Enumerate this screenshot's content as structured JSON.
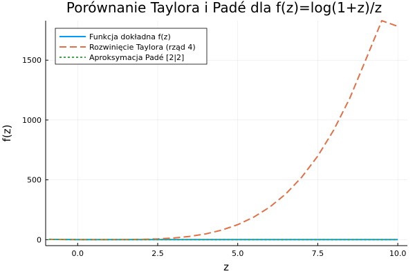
{
  "chart_data": {
    "type": "line",
    "title": "Porównanie Taylora i Padé dla f(z)=log(1+z)/z",
    "xlabel": "z",
    "ylabel": "f(z)",
    "xlim": [
      -1,
      10.3
    ],
    "ylim": [
      -50,
      1830
    ],
    "grid": true,
    "legend_position": "top-left",
    "x_ticks": [
      0.0,
      2.5,
      5.0,
      7.5,
      10.0
    ],
    "x_tick_labels": [
      "0.0",
      "2.5",
      "5.0",
      "7.5",
      "10.0"
    ],
    "y_ticks": [
      0,
      500,
      1000,
      1500
    ],
    "y_tick_labels": [
      "0",
      "500",
      "1000",
      "1500"
    ],
    "x": [
      -0.9,
      0.0,
      0.5,
      1.0,
      1.5,
      2.0,
      2.5,
      3.0,
      3.5,
      4.0,
      4.5,
      5.0,
      5.5,
      6.0,
      6.5,
      7.0,
      7.5,
      8.0,
      8.5,
      9.0,
      9.5,
      10.0
    ],
    "series": [
      {
        "name": "Funkcja dokładna f(z)",
        "color": "#009AFA",
        "dash": "solid",
        "values": [
          2.558,
          1.0,
          0.811,
          0.693,
          0.611,
          0.549,
          0.501,
          0.462,
          0.429,
          0.402,
          0.378,
          0.358,
          0.34,
          0.324,
          0.31,
          0.297,
          0.285,
          0.275,
          0.265,
          0.256,
          0.248,
          0.24
        ]
      },
      {
        "name": "Rozwinięcie Taylora (rząd 4)",
        "color": "#E26F46",
        "dash": "dashed",
        "values": [
          2.032,
          1.0,
          0.802,
          0.783,
          1.198,
          2.733,
          6.485,
          13.95,
          27.05,
          48.07,
          79.73,
          125.2,
          188.1,
          272.2,
          382.1,
          522.4,
          698.3,
          916.0,
          1181.9,
          1503.5,
          1888.0,
          1783.3
        ]
      },
      {
        "name": "Aproksymacja Padé [2|2]",
        "color": "#3EA44E",
        "dash": "dotted",
        "values": [
          2.53,
          1.0,
          0.811,
          0.693,
          0.611,
          0.549,
          0.501,
          0.462,
          0.429,
          0.402,
          0.378,
          0.358,
          0.34,
          0.324,
          0.31,
          0.297,
          0.285,
          0.275,
          0.265,
          0.256,
          0.248,
          0.24
        ]
      }
    ]
  }
}
